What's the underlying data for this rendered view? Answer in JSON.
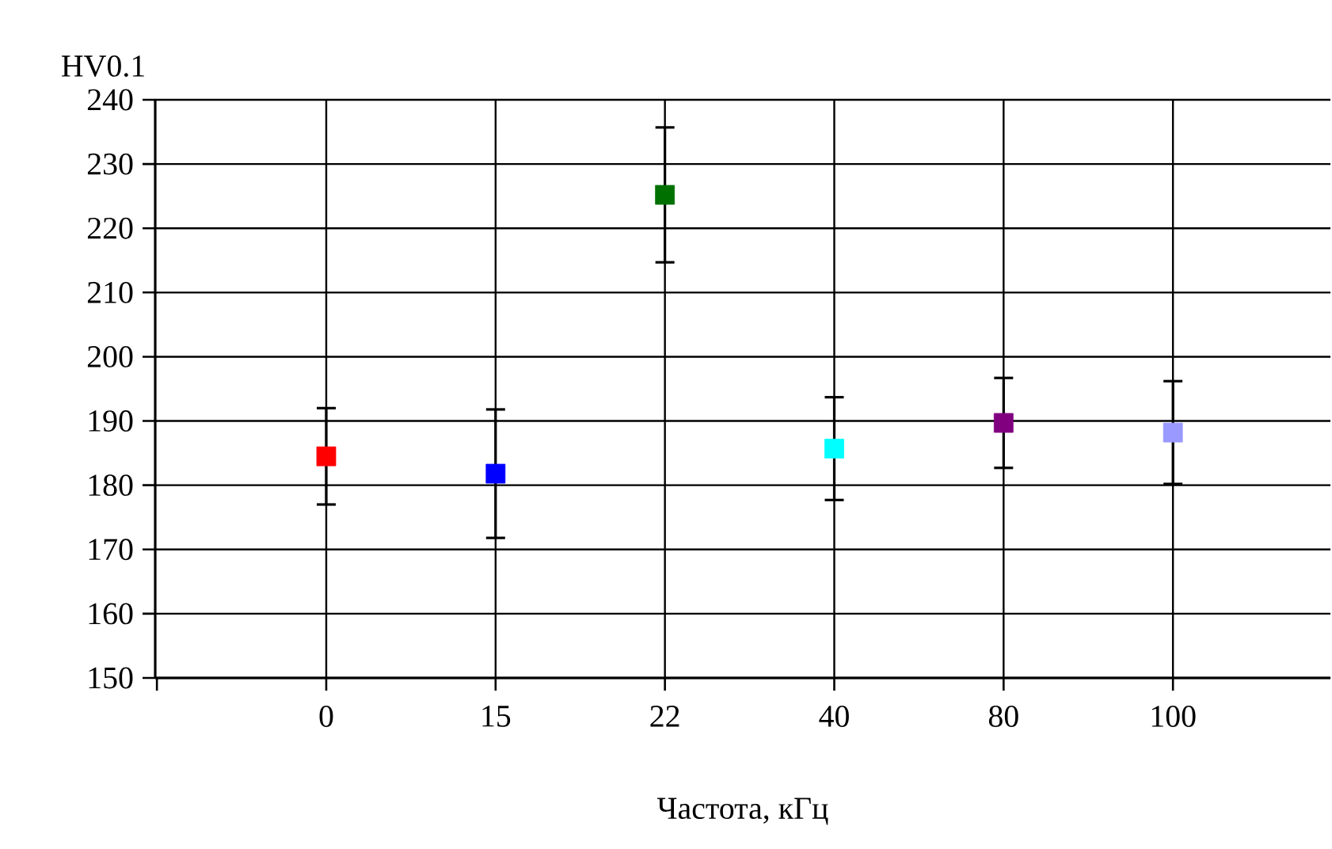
{
  "chart_data": {
    "type": "scatter",
    "xlabel": "Частота, кГц",
    "ylabel": "HV0.1",
    "categories": [
      "0",
      "15",
      "22",
      "40",
      "80",
      "100"
    ],
    "values": [
      184.5,
      181.8,
      225.2,
      185.7,
      189.7,
      188.2
    ],
    "errors": [
      7.5,
      10,
      10.5,
      8,
      7,
      8
    ],
    "colors": [
      "#ff0000",
      "#0000ff",
      "#007000",
      "#00ffff",
      "#800080",
      "#9999ff"
    ],
    "ylim": [
      150,
      240
    ],
    "yticks": [
      150,
      160,
      170,
      180,
      190,
      200,
      210,
      220,
      230,
      240
    ],
    "grid": true,
    "marker": "square"
  }
}
